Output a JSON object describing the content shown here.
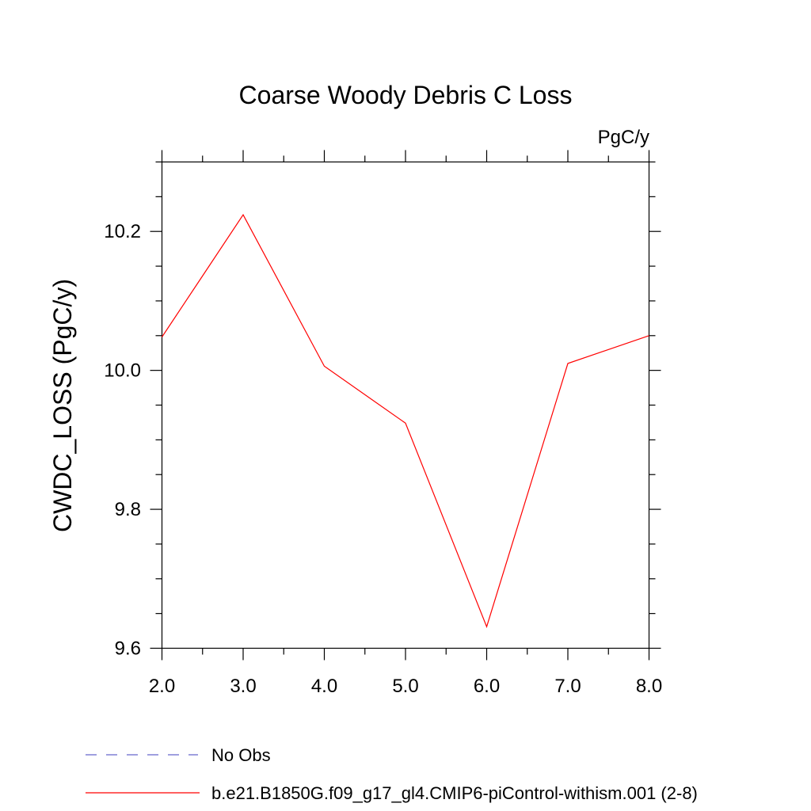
{
  "chart_data": {
    "type": "line",
    "title": "Coarse Woody Debris C Loss",
    "units_label": "PgC/y",
    "ylabel": "CWDC_LOSS  (PgC/y)",
    "xlabel": "",
    "xlim": [
      2.0,
      8.0
    ],
    "ylim": [
      9.6,
      10.3
    ],
    "x_ticks": [
      "2.0",
      "3.0",
      "4.0",
      "5.0",
      "6.0",
      "7.0",
      "8.0"
    ],
    "y_ticks": [
      "9.6",
      "9.8",
      "10.0",
      "10.2"
    ],
    "grid": false,
    "series": [
      {
        "name": "b.e21.B1850G.f09_g17_gl4.CMIP6-piControl-withism.001 (2-8)",
        "color": "#ff0000",
        "x": [
          2.0,
          3.0,
          4.0,
          5.0,
          6.0,
          7.0,
          8.0
        ],
        "y": [
          10.048,
          10.224,
          10.006,
          9.924,
          9.631,
          10.01,
          10.05
        ]
      }
    ],
    "legend": {
      "placement": "bottom-left",
      "entries": [
        {
          "label": "No Obs",
          "color": "#6666cc",
          "style": "dashed"
        },
        {
          "label": "b.e21.B1850G.f09_g17_gl4.CMIP6-piControl-withism.001 (2-8)",
          "color": "#ff0000",
          "style": "solid"
        }
      ]
    }
  }
}
